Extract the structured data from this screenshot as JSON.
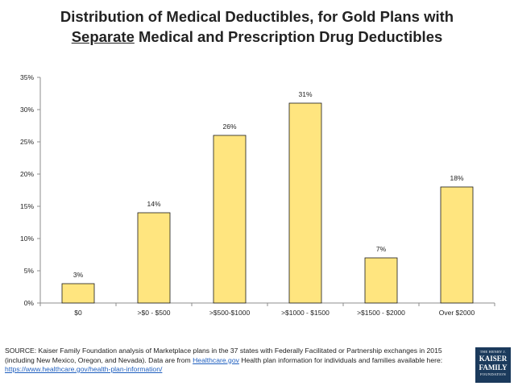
{
  "chart_data": {
    "type": "bar",
    "title_line1": "Distribution of Medical Deductibles, for Gold Plans with",
    "title_line2_underlined": "Separate",
    "title_line2_rest": " Medical and Prescription Drug Deductibles",
    "categories": [
      "$0",
      ">$0 - $500",
      ">$500-$1000",
      ">$1000 - $1500",
      ">$1500 - $2000",
      "Over $2000"
    ],
    "values": [
      3,
      14,
      26,
      31,
      7,
      18
    ],
    "data_labels": [
      "3%",
      "14%",
      "26%",
      "31%",
      "7%",
      "18%"
    ],
    "yticks": [
      0,
      5,
      10,
      15,
      20,
      25,
      30,
      35
    ],
    "ytick_labels": [
      "0%",
      "5%",
      "10%",
      "15%",
      "20%",
      "25%",
      "30%",
      "35%"
    ],
    "ylim": [
      0,
      35
    ],
    "xlabel": "",
    "ylabel": "",
    "grid": false,
    "colors": {
      "bar_fill": "#FFE57F",
      "bar_stroke": "#1a1a1a",
      "axis": "#8c8c8c"
    }
  },
  "source": {
    "text1": "SOURCE: Kaiser Family Foundation analysis of Marketplace plans in the 37 states with Federally Facilitated or Partnership exchanges in 2015 (including New Mexico, Oregon, and Nevada). Data are from ",
    "link1": "Healthcare.gov",
    "text2": " Health plan information for individuals and families available here: ",
    "link2": "https://www.healthcare.gov/health-plan-information/"
  },
  "logo": {
    "line1": "THE HENRY J.",
    "line2a": "KAISER",
    "line2b": "FAMILY",
    "line3": "FOUNDATION"
  }
}
